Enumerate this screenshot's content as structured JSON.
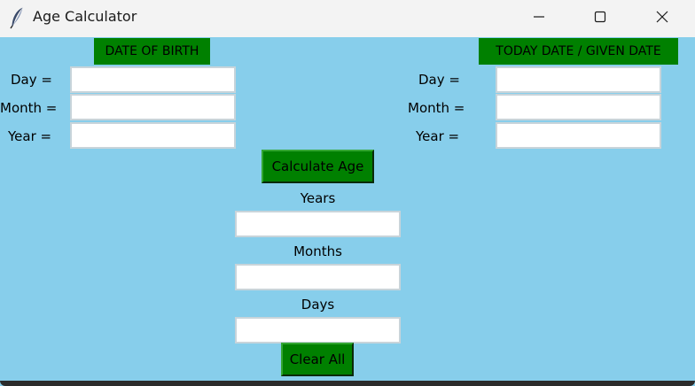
{
  "window": {
    "title": "Age Calculator",
    "icon": "feather-icon",
    "controls": {
      "minimize_icon": "minimize-icon",
      "maximize_icon": "maximize-icon",
      "close_icon": "close-icon"
    }
  },
  "colors": {
    "background": "#87ceeb",
    "accent": "#008000",
    "titlebar": "#f3f3f3"
  },
  "birth": {
    "header": "DATE OF BIRTH",
    "day_label": "Day =",
    "month_label": "Month =",
    "year_label": "Year =",
    "day_value": "",
    "month_value": "",
    "year_value": ""
  },
  "given": {
    "header": "TODAY DATE / GIVEN DATE",
    "day_label": "Day =",
    "month_label": "Month =",
    "year_label": "Year =",
    "day_value": "",
    "month_value": "",
    "year_value": ""
  },
  "actions": {
    "calculate_label": "Calculate Age",
    "clear_label": "Clear All"
  },
  "results": {
    "years_label": "Years",
    "months_label": "Months",
    "days_label": "Days",
    "years_value": "",
    "months_value": "",
    "days_value": ""
  }
}
